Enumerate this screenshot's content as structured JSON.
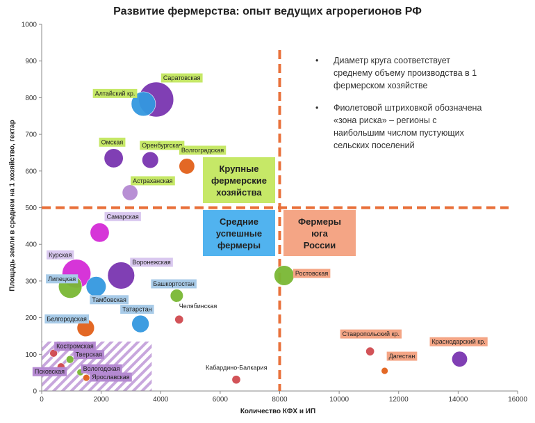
{
  "chart_data": {
    "type": "scatter",
    "title": "Развитие фермерства: опыт ведущих агрорегионов РФ",
    "xlabel": "Количество КФХ и ИП",
    "ylabel": "Площадь земли в среднем на 1 хозяйство, гектар",
    "xlim": [
      0,
      16000
    ],
    "ylim": [
      0,
      1000
    ],
    "x_ticks": [
      "0",
      "2000",
      "4000",
      "6000",
      "8000",
      "10000",
      "12000",
      "14000",
      "16000"
    ],
    "y_ticks": [
      "0",
      "100",
      "200",
      "300",
      "400",
      "500",
      "600",
      "700",
      "800",
      "900",
      "1000"
    ],
    "grid": false,
    "reference_lines": [
      {
        "axis": "x",
        "value": 8000,
        "style": "dashed",
        "color": "#e8703a"
      },
      {
        "axis": "y",
        "value": 500,
        "style": "dashed",
        "color": "#e8703a"
      }
    ],
    "notes": [
      "Диаметр круга соответствует среднему объему производства в 1 фермерском хозяйстве",
      "Фиолетовой штриховкой обозначена «зона риска» – регионы с наибольшим числом пустующих сельских поселений"
    ],
    "zones": {
      "large": "Крупные\nфермерские\nхозяйства",
      "middle": "Средние\nуспешные\nфермеры",
      "south": "Фермеры\nюга\nРоссии"
    },
    "risk_zone": {
      "x": [
        0,
        3700
      ],
      "y": [
        0,
        135
      ]
    },
    "points": [
      {
        "name": "Саратовская",
        "x": 3850,
        "y": 795,
        "size": 3.5,
        "color": "#7a35b0",
        "label_color": "#c6e867"
      },
      {
        "name": "Алтайский кр.",
        "x": 3420,
        "y": 783,
        "size": 2.3,
        "color": "#3498e0",
        "label_color": "#c6e867"
      },
      {
        "name": "Омская",
        "x": 2420,
        "y": 635,
        "size": 1.7,
        "color": "#7a35b0",
        "label_color": "#c6e867"
      },
      {
        "name": "Оренбургская",
        "x": 3650,
        "y": 630,
        "size": 1.4,
        "color": "#7a35b0",
        "label_color": "#c6e867"
      },
      {
        "name": "Волгоградская",
        "x": 4880,
        "y": 613,
        "size": 1.3,
        "color": "#e2601a",
        "label_color": "#c6e867"
      },
      {
        "name": "Астраханская",
        "x": 2970,
        "y": 541,
        "size": 1.3,
        "color": "#b58ad2",
        "label_color": "#c6e867"
      },
      {
        "name": "Самарская",
        "x": 1950,
        "y": 432,
        "size": 1.7,
        "color": "#d42bd6",
        "label_color": "#d9c8ef"
      },
      {
        "name": "Курская",
        "x": 1170,
        "y": 320,
        "size": 2.8,
        "color": "#d42bd6",
        "label_color": "#d9c8ef"
      },
      {
        "name": "Воронежская",
        "x": 2670,
        "y": 315,
        "size": 2.6,
        "color": "#7a35b0",
        "label_color": "#d9c8ef"
      },
      {
        "name": "Липецкая",
        "x": 960,
        "y": 285,
        "size": 2.2,
        "color": "#7ab834",
        "label_color": "#a8cbe8"
      },
      {
        "name": "Тамбовская",
        "x": 1830,
        "y": 285,
        "size": 1.8,
        "color": "#3498e0",
        "label_color": "#a8cbe8"
      },
      {
        "name": "Башкортостан",
        "x": 4540,
        "y": 260,
        "size": 1.0,
        "color": "#7ab834",
        "label_color": "#a8cbe8"
      },
      {
        "name": "Челябинская",
        "x": 4620,
        "y": 195,
        "size": 0.5,
        "color": "#d04a50",
        "label_color": "#ffffff"
      },
      {
        "name": "Белгородская",
        "x": 1480,
        "y": 172,
        "size": 1.5,
        "color": "#e2601a",
        "label_color": "#a8cbe8"
      },
      {
        "name": "Татарстан",
        "x": 3320,
        "y": 183,
        "size": 1.5,
        "color": "#3498e0",
        "label_color": "#a8cbe8"
      },
      {
        "name": "Ростовская",
        "x": 8150,
        "y": 315,
        "size": 1.8,
        "color": "#7ab834",
        "label_color": "#f4a585"
      },
      {
        "name": "Ставропольский кр.",
        "x": 11040,
        "y": 108,
        "size": 0.5,
        "color": "#d04a50",
        "label_color": "#f4a585"
      },
      {
        "name": "Краснодарский кр.",
        "x": 14050,
        "y": 87,
        "size": 1.3,
        "color": "#7a35b0",
        "label_color": "#f4a585"
      },
      {
        "name": "Дагестан",
        "x": 11530,
        "y": 55,
        "size": 0.3,
        "color": "#e2601a",
        "label_color": "#f4a585"
      },
      {
        "name": "Кабардино-Балкария",
        "x": 6540,
        "y": 31,
        "size": 0.5,
        "color": "#d04a50",
        "label_color": "#ffffff"
      },
      {
        "name": "Костромская",
        "x": 400,
        "y": 103,
        "size": 0.4,
        "color": "#d04a50",
        "label_color": "#b58ad2"
      },
      {
        "name": "Тверская",
        "x": 950,
        "y": 86,
        "size": 0.4,
        "color": "#7ab834",
        "label_color": "#b58ad2"
      },
      {
        "name": "Псковская",
        "x": 650,
        "y": 66,
        "size": 0.4,
        "color": "#d04a50",
        "label_color": "#b58ad2"
      },
      {
        "name": "Вологодская",
        "x": 1300,
        "y": 51,
        "size": 0.3,
        "color": "#7ab834",
        "label_color": "#b58ad2"
      },
      {
        "name": "Ярославская",
        "x": 1500,
        "y": 36,
        "size": 0.3,
        "color": "#e2601a",
        "label_color": "#b58ad2"
      }
    ]
  }
}
